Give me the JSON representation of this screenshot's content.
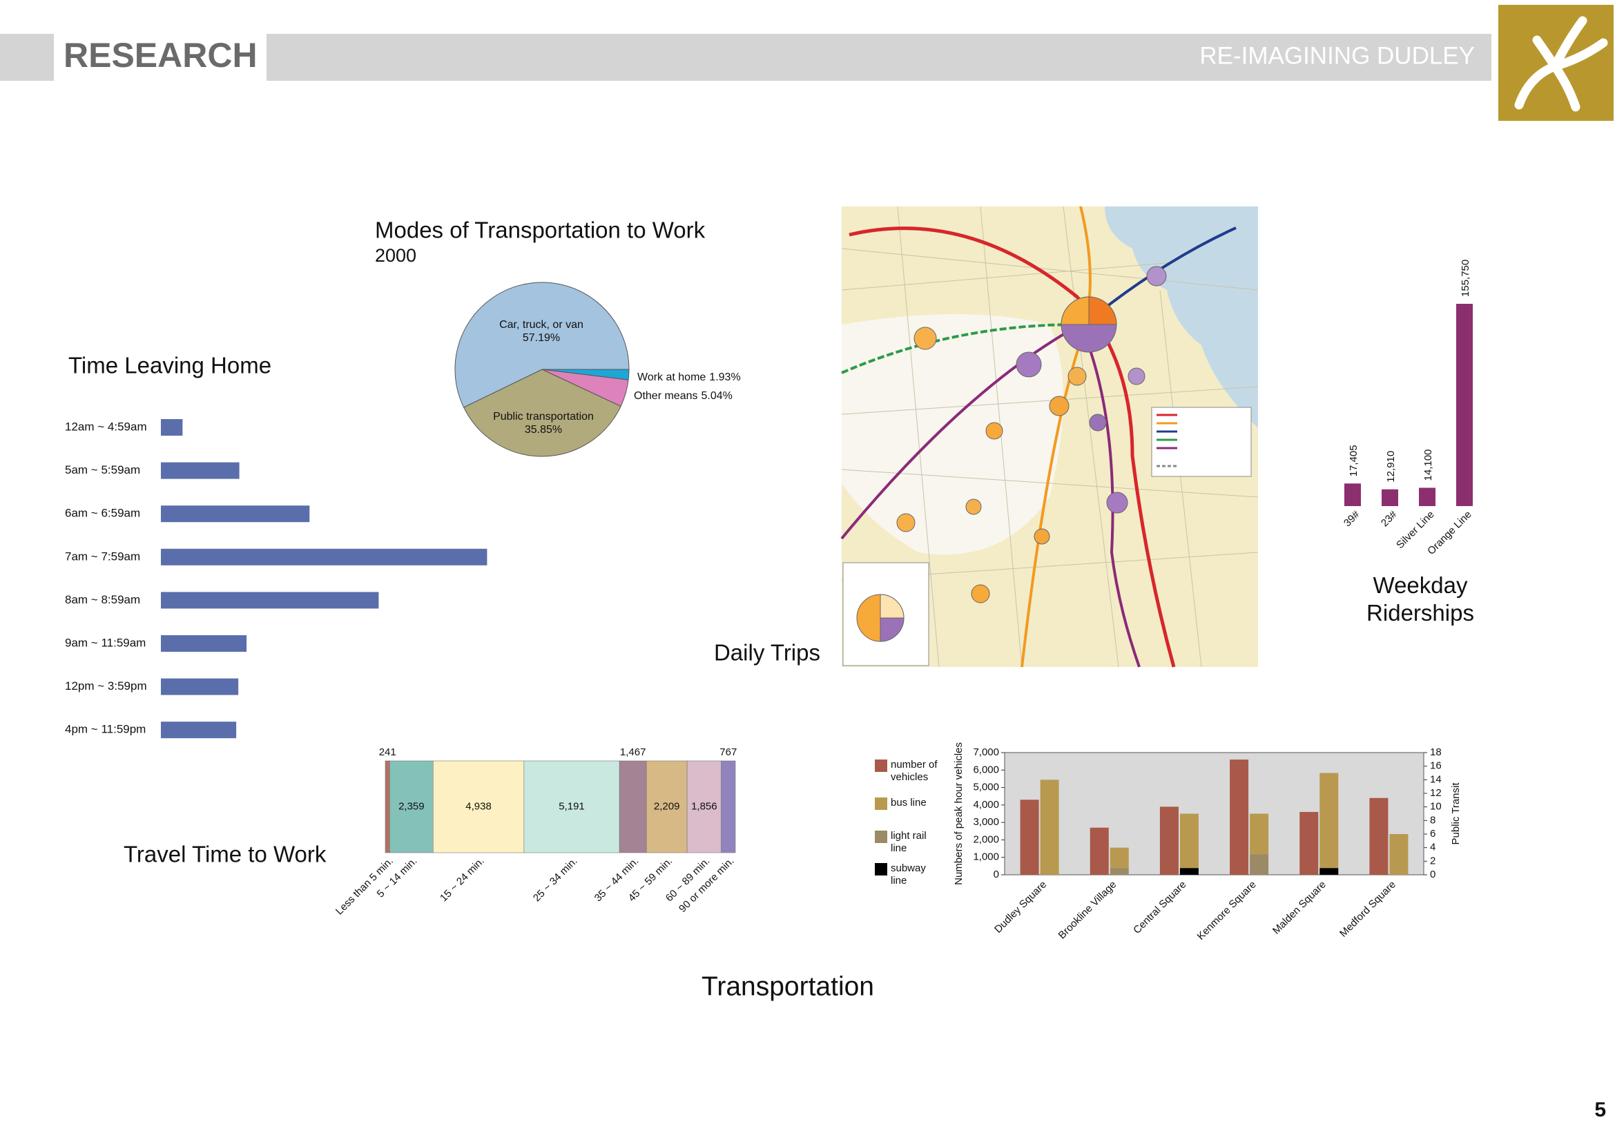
{
  "header": {
    "section": "RESEARCH",
    "project": "RE-IMAGINING DUDLEY"
  },
  "caption": "Transportation",
  "map_label": "Daily Trips",
  "page_number": "5",
  "chart_data": [
    {
      "type": "pie",
      "title": "Modes of Transportation to Work",
      "subtitle": "2000",
      "categories": [
        "Work at home",
        "Other means",
        "Public transportation",
        "Car, truck, or van"
      ],
      "values": [
        1.93,
        5.04,
        35.85,
        57.19
      ],
      "value_labels": [
        "1.93%",
        "5.04%",
        "35.85%",
        "57.19%"
      ],
      "colors": [
        "#1ea6d6",
        "#de82bb",
        "#b1aa7c",
        "#a3c3df"
      ]
    },
    {
      "type": "hbar",
      "title": "Time Leaving Home",
      "categories": [
        "12am ~ 4:59am",
        "5am ~ 5:59am",
        "6am ~ 6:59am",
        "7am ~ 7:59am",
        "8am ~ 8:59am",
        "9am ~ 11:59am",
        "12pm ~ 3:59pm",
        "4pm ~ 11:59pm"
      ],
      "values": [
        2.1,
        7.6,
        14.4,
        31.6,
        21.1,
        8.3,
        7.5,
        7.3
      ],
      "color": "#5a6eab",
      "xlim": [
        0,
        40
      ]
    },
    {
      "type": "stacked_bar",
      "title": "Travel Time to Work",
      "categories": [
        "Less than 5 min.",
        "5 ~ 14 min.",
        "15 ~ 24 min.",
        "25 ~ 34 min.",
        "35 ~ 44 min.",
        "45 ~ 59 min.",
        "60 ~ 89 min.",
        "90 or more min."
      ],
      "values": [
        241,
        2359,
        4938,
        5191,
        1467,
        2209,
        1856,
        767
      ],
      "value_labels": [
        "241",
        "2,359",
        "4,938",
        "5,191",
        "1,467",
        "2,209",
        "1,856",
        "767"
      ],
      "colors": [
        "#b07262",
        "#84c1b9",
        "#fdf1c3",
        "#c9e8e0",
        "#a48394",
        "#d7b985",
        "#dbbccb",
        "#9183c0"
      ]
    },
    {
      "type": "bar",
      "title": "Weekday Riderships",
      "categories": [
        "39#",
        "23#",
        "Silver Line",
        "Orange Line"
      ],
      "values": [
        17405,
        12910,
        14100,
        155750
      ],
      "value_labels": [
        "17,405",
        "12,910",
        "14,100",
        "155,750"
      ],
      "color": "#8c2f6e",
      "ylim": [
        0,
        160000
      ]
    },
    {
      "type": "bar",
      "categories": [
        "Dudley Square",
        "Brookline Village",
        "Central Square",
        "Kenmore Square",
        "Malden Square",
        "Medford Square"
      ],
      "ylabel": "Numbers of peak hour vehicles",
      "y2label": "Public Transit",
      "ylim": [
        0,
        7000
      ],
      "yticks": [
        0,
        {
          "value": 1000,
          "label": "1,000"
        },
        {
          "value": 2000,
          "label": "2,000"
        },
        {
          "value": 3000,
          "label": "3,000"
        },
        {
          "value": 4000,
          "label": "4,000"
        },
        {
          "value": 5000,
          "label": "5,000"
        },
        {
          "value": 6000,
          "label": "6,000"
        },
        {
          "value": 7000,
          "label": "7,000"
        }
      ],
      "y2lim": [
        0,
        18
      ],
      "y2ticks": [
        0,
        2,
        4,
        6,
        8,
        10,
        12,
        14,
        16,
        18
      ],
      "y2_stacked": true,
      "series": [
        {
          "name": "number of vehicles",
          "color": "#a85949",
          "values": [
            4300,
            2700,
            3900,
            6600,
            3600,
            4400
          ]
        },
        {
          "name": "bus line",
          "color": "#b8994f",
          "axis": "y2",
          "values": [
            14,
            3,
            8,
            6,
            14,
            6
          ]
        },
        {
          "name": "light rail line",
          "color": "#9c8a66",
          "axis": "y2",
          "values": [
            0,
            1,
            0,
            3,
            0,
            0
          ]
        },
        {
          "name": "subway line",
          "color": "#000000",
          "axis": "y2",
          "values": [
            0,
            0,
            1,
            0,
            1,
            0
          ]
        }
      ]
    }
  ]
}
